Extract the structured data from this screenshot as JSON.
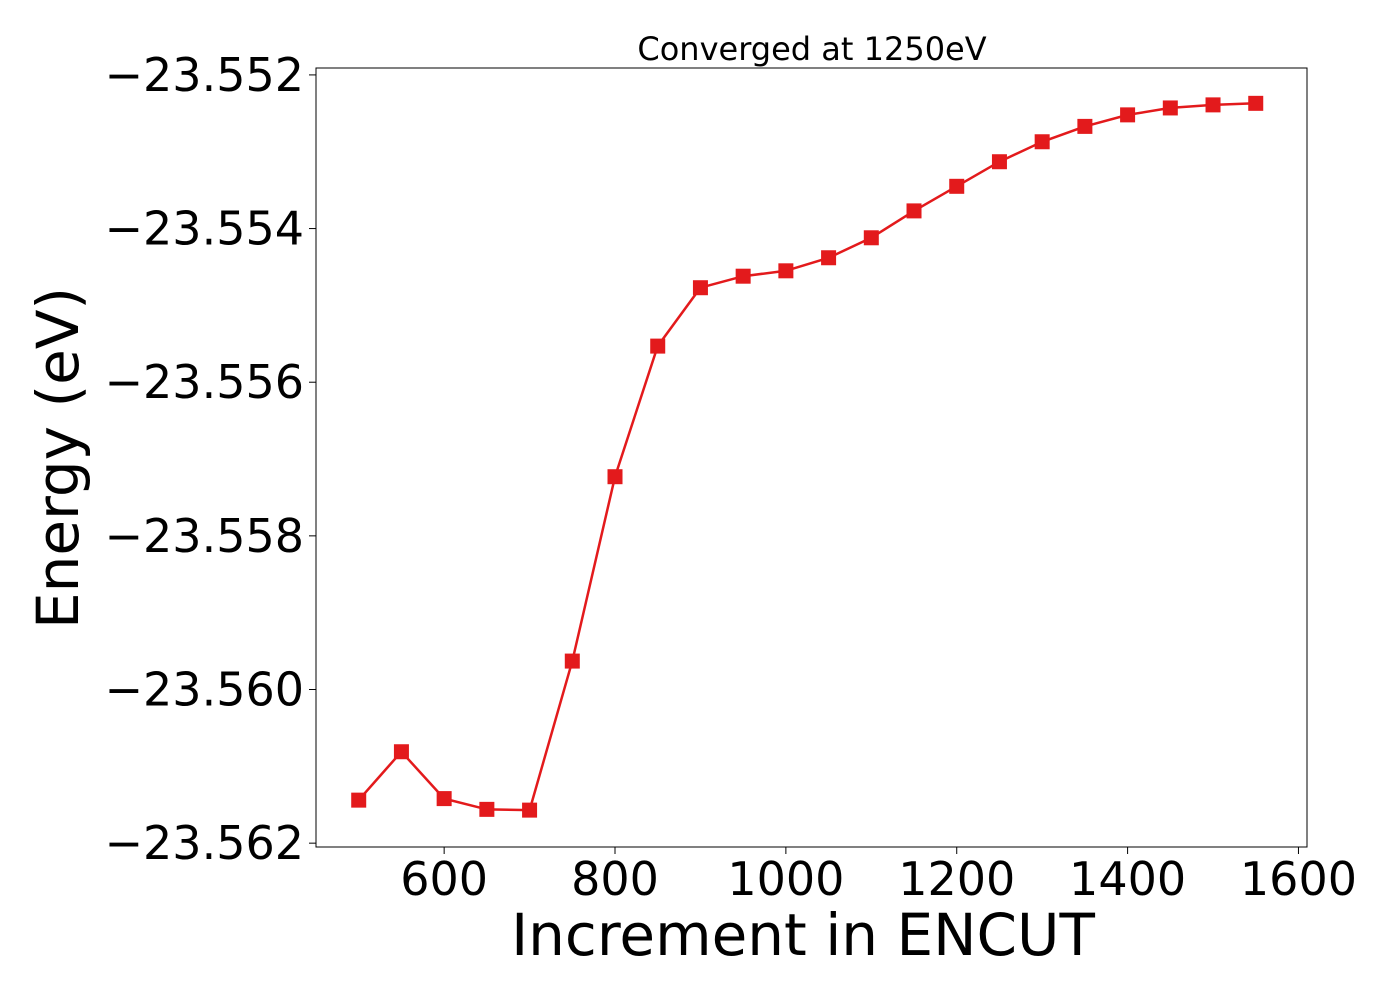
{
  "chart_data": {
    "type": "line",
    "title": "Converged at 1250eV",
    "xlabel": "Increment in ENCUT",
    "ylabel": "Energy (eV)",
    "xlim": [
      450,
      1610
    ],
    "ylim": [
      -23.56205,
      -23.55191
    ],
    "x_ticks": [
      600,
      800,
      1000,
      1200,
      1400,
      1600
    ],
    "x_tick_labels": [
      "600",
      "800",
      "1000",
      "1200",
      "1400",
      "1600"
    ],
    "y_ticks": [
      -23.552,
      -23.554,
      -23.556,
      -23.558,
      -23.56,
      -23.562
    ],
    "y_tick_labels": [
      "−23.552",
      "−23.554",
      "−23.556",
      "−23.558",
      "−23.560",
      "−23.562"
    ],
    "grid": false,
    "legend": "none",
    "series": [
      {
        "color": "#e31a1c",
        "marker": "square",
        "x": [
          500,
          550,
          600,
          650,
          700,
          750,
          800,
          850,
          900,
          950,
          1000,
          1050,
          1100,
          1150,
          1200,
          1250,
          1300,
          1350,
          1400,
          1450,
          1500,
          1550
        ],
        "y": [
          -23.56144,
          -23.56081,
          -23.56142,
          -23.56156,
          -23.56157,
          -23.55963,
          -23.55723,
          -23.55553,
          -23.55477,
          -23.55462,
          -23.55455,
          -23.55438,
          -23.55412,
          -23.55377,
          -23.55345,
          -23.55313,
          -23.55287,
          -23.55267,
          -23.55252,
          -23.55243,
          -23.55239,
          -23.55237
        ]
      }
    ]
  }
}
